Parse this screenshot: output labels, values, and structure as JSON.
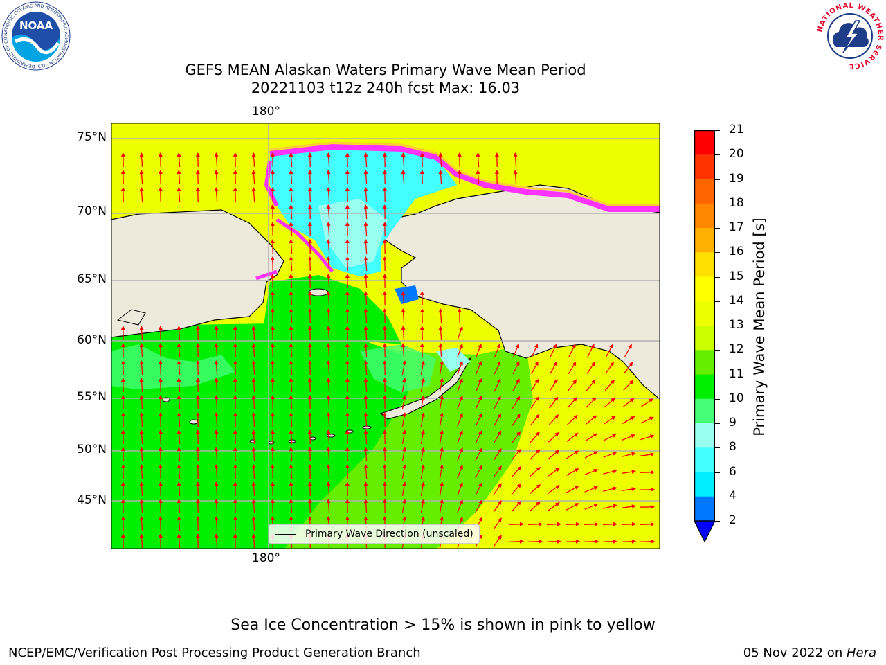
{
  "title": {
    "line1": "GEFS MEAN Alaskan Waters Primary Wave Mean Period",
    "line2": "20221103 t12z 240h fcst   Max: 16.03"
  },
  "logos": {
    "noaa_text": "NOAA",
    "noaa_ring": "NATIONAL OCEANIC AND ATMOSPHERIC ADMINISTRATION · U.S. DEPARTMENT OF COMMERCE ·",
    "nws_ring": "NATIONAL WEATHER SERVICE"
  },
  "map": {
    "lon_label_top": "180°",
    "lon_label_bottom": "180°",
    "lat_labels": [
      "75°N",
      "70°N",
      "65°N",
      "60°N",
      "55°N",
      "50°N",
      "45°N"
    ],
    "legend_text": "Primary Wave Direction (unscaled)",
    "colors": {
      "land": "#eeeadb",
      "ice_pink": "#ff33ff",
      "arrow": "#ff0000"
    }
  },
  "colorbar": {
    "label": "Primary Wave Mean Period [s]",
    "ticks": [
      "21",
      "20",
      "19",
      "18",
      "17",
      "16",
      "15",
      "14",
      "13",
      "12",
      "11",
      "10",
      "9",
      "8",
      "6",
      "4",
      "2"
    ],
    "colors": [
      "#ff0000",
      "#ff3300",
      "#ff6600",
      "#ff8800",
      "#ffb000",
      "#ffe000",
      "#ffff00",
      "#eeff00",
      "#ccff00",
      "#66ee00",
      "#00ee00",
      "#44ff77",
      "#99ffee",
      "#44ffff",
      "#00eeff",
      "#0077ff"
    ],
    "extend_color": "#0000ff"
  },
  "footer": {
    "note": "Sea Ice Concentration > 15% is shown in pink to yellow",
    "left": "NCEP/EMC/Verification Post Processing Product Generation Branch",
    "right_date": "05 Nov 2022 on ",
    "right_machine": "Hera"
  }
}
